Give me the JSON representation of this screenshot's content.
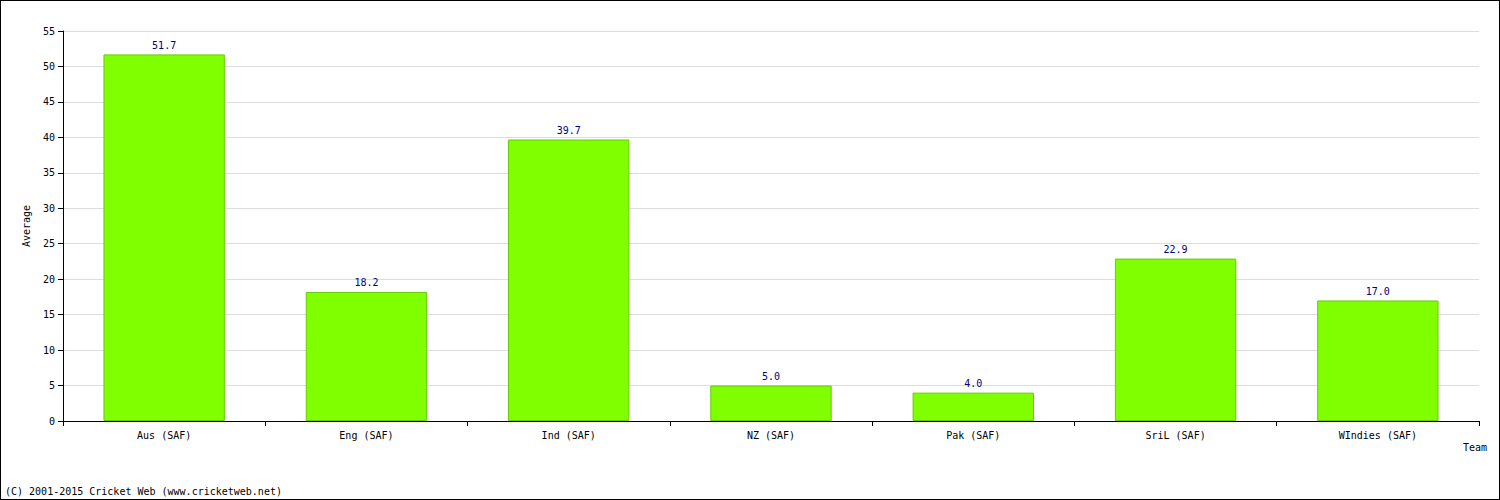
{
  "chart_data": {
    "type": "bar",
    "categories": [
      "Aus (SAF)",
      "Eng (SAF)",
      "Ind (SAF)",
      "NZ (SAF)",
      "Pak (SAF)",
      "SriL (SAF)",
      "WIndies (SAF)"
    ],
    "values": [
      51.7,
      18.2,
      39.7,
      5.0,
      4.0,
      22.9,
      17.0
    ],
    "value_labels": [
      "51.7",
      "18.2",
      "39.7",
      "5.0",
      "4.0",
      "22.9",
      "17.0"
    ],
    "color": "#7fff00",
    "x_label": "Team",
    "y_label": "Average",
    "annotation": "(C) 2001-2015 Cricket Web (www.cricketweb.net)",
    "ylim": [
      0,
      55
    ],
    "yticks": [
      0,
      5,
      10,
      15,
      20,
      25,
      30,
      35,
      40,
      45,
      50,
      55
    ],
    "grid": true,
    "data_labels": true
  }
}
